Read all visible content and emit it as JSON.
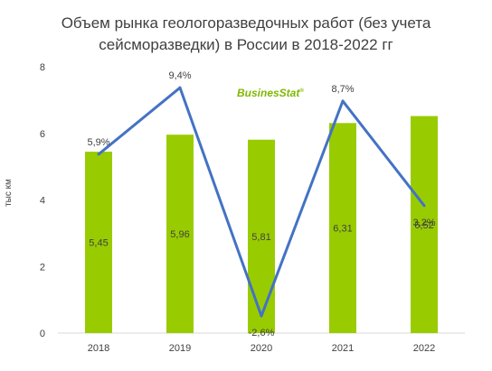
{
  "title_line1": "Объем рынка геологоразведочных работ (без учета",
  "title_line2": "сейсморазведки) в России в 2018-2022 гг",
  "logo_text": "BusinesStat",
  "logo_mark": "®",
  "chart_data": {
    "type": "bar",
    "ylabel": "тыс км",
    "ylim": [
      0,
      8
    ],
    "yticks": [
      "0",
      "2",
      "4",
      "6",
      "8"
    ],
    "categories": [
      "2018",
      "2019",
      "2020",
      "2021",
      "2022"
    ],
    "bar_color": "#99cc00",
    "line_color": "#4472c4",
    "series": [
      {
        "values": [
          5.45,
          5.96,
          5.81,
          6.31,
          6.52
        ],
        "labels": [
          "5,45",
          "5,96",
          "5,81",
          "6,31",
          "6,52"
        ]
      },
      {
        "values": [
          5.9,
          9.4,
          -2.6,
          8.7,
          3.2
        ],
        "labels": [
          "5,9%",
          "9,4%",
          "-2,6%",
          "8,7%",
          "3,2%"
        ],
        "kind": "line",
        "secondary_axis": true
      }
    ]
  }
}
